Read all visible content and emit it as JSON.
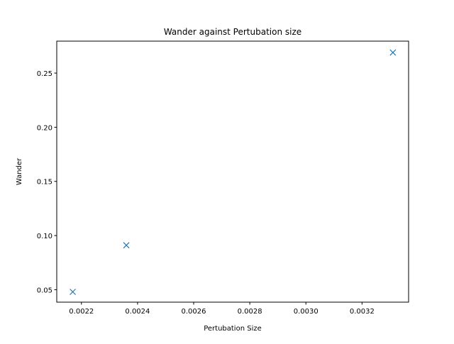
{
  "chart_data": {
    "type": "scatter",
    "title": "Wander against Pertubation size",
    "xlabel": "Pertubation Size",
    "ylabel": "Wander",
    "marker": "x",
    "color": "#1f77b4",
    "xlim": [
      0.002112,
      0.003366
    ],
    "ylim": [
      0.0385,
      0.2795
    ],
    "xticks": [
      0.0022,
      0.0024,
      0.0026,
      0.0028,
      0.003,
      0.0032
    ],
    "xtick_labels": [
      "0.0022",
      "0.0024",
      "0.0026",
      "0.0028",
      "0.0030",
      "0.0032"
    ],
    "yticks": [
      0.05,
      0.1,
      0.15,
      0.2,
      0.25
    ],
    "ytick_labels": [
      "0.05",
      "0.10",
      "0.15",
      "0.20",
      "0.25"
    ],
    "grid": false,
    "legend": false,
    "points": [
      {
        "x": 0.002169,
        "y": 0.048
      },
      {
        "x": 0.00236,
        "y": 0.091
      },
      {
        "x": 0.00331,
        "y": 0.269
      }
    ]
  }
}
